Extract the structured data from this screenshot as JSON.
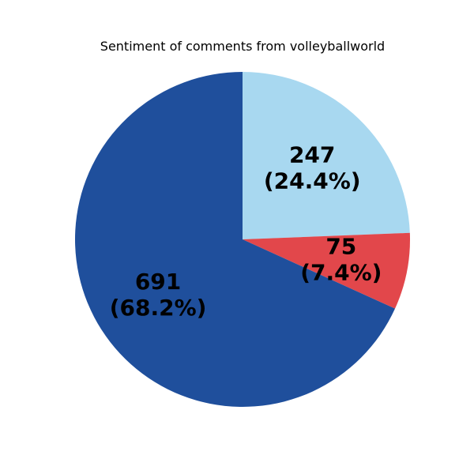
{
  "chart_data": {
    "type": "pie",
    "title": "Sentiment of comments from volleyballworld",
    "slices": [
      {
        "value": 247,
        "label": "247",
        "percent_label": "(24.4%)",
        "color": "#a8d8f0"
      },
      {
        "value": 75,
        "label": "75",
        "percent_label": "(7.4%)",
        "color": "#e2474b"
      },
      {
        "value": 691,
        "label": "691",
        "percent_label": "(68.2%)",
        "color": "#1f4f9c"
      }
    ],
    "start_angle_deg": 90,
    "direction": "clockwise"
  }
}
